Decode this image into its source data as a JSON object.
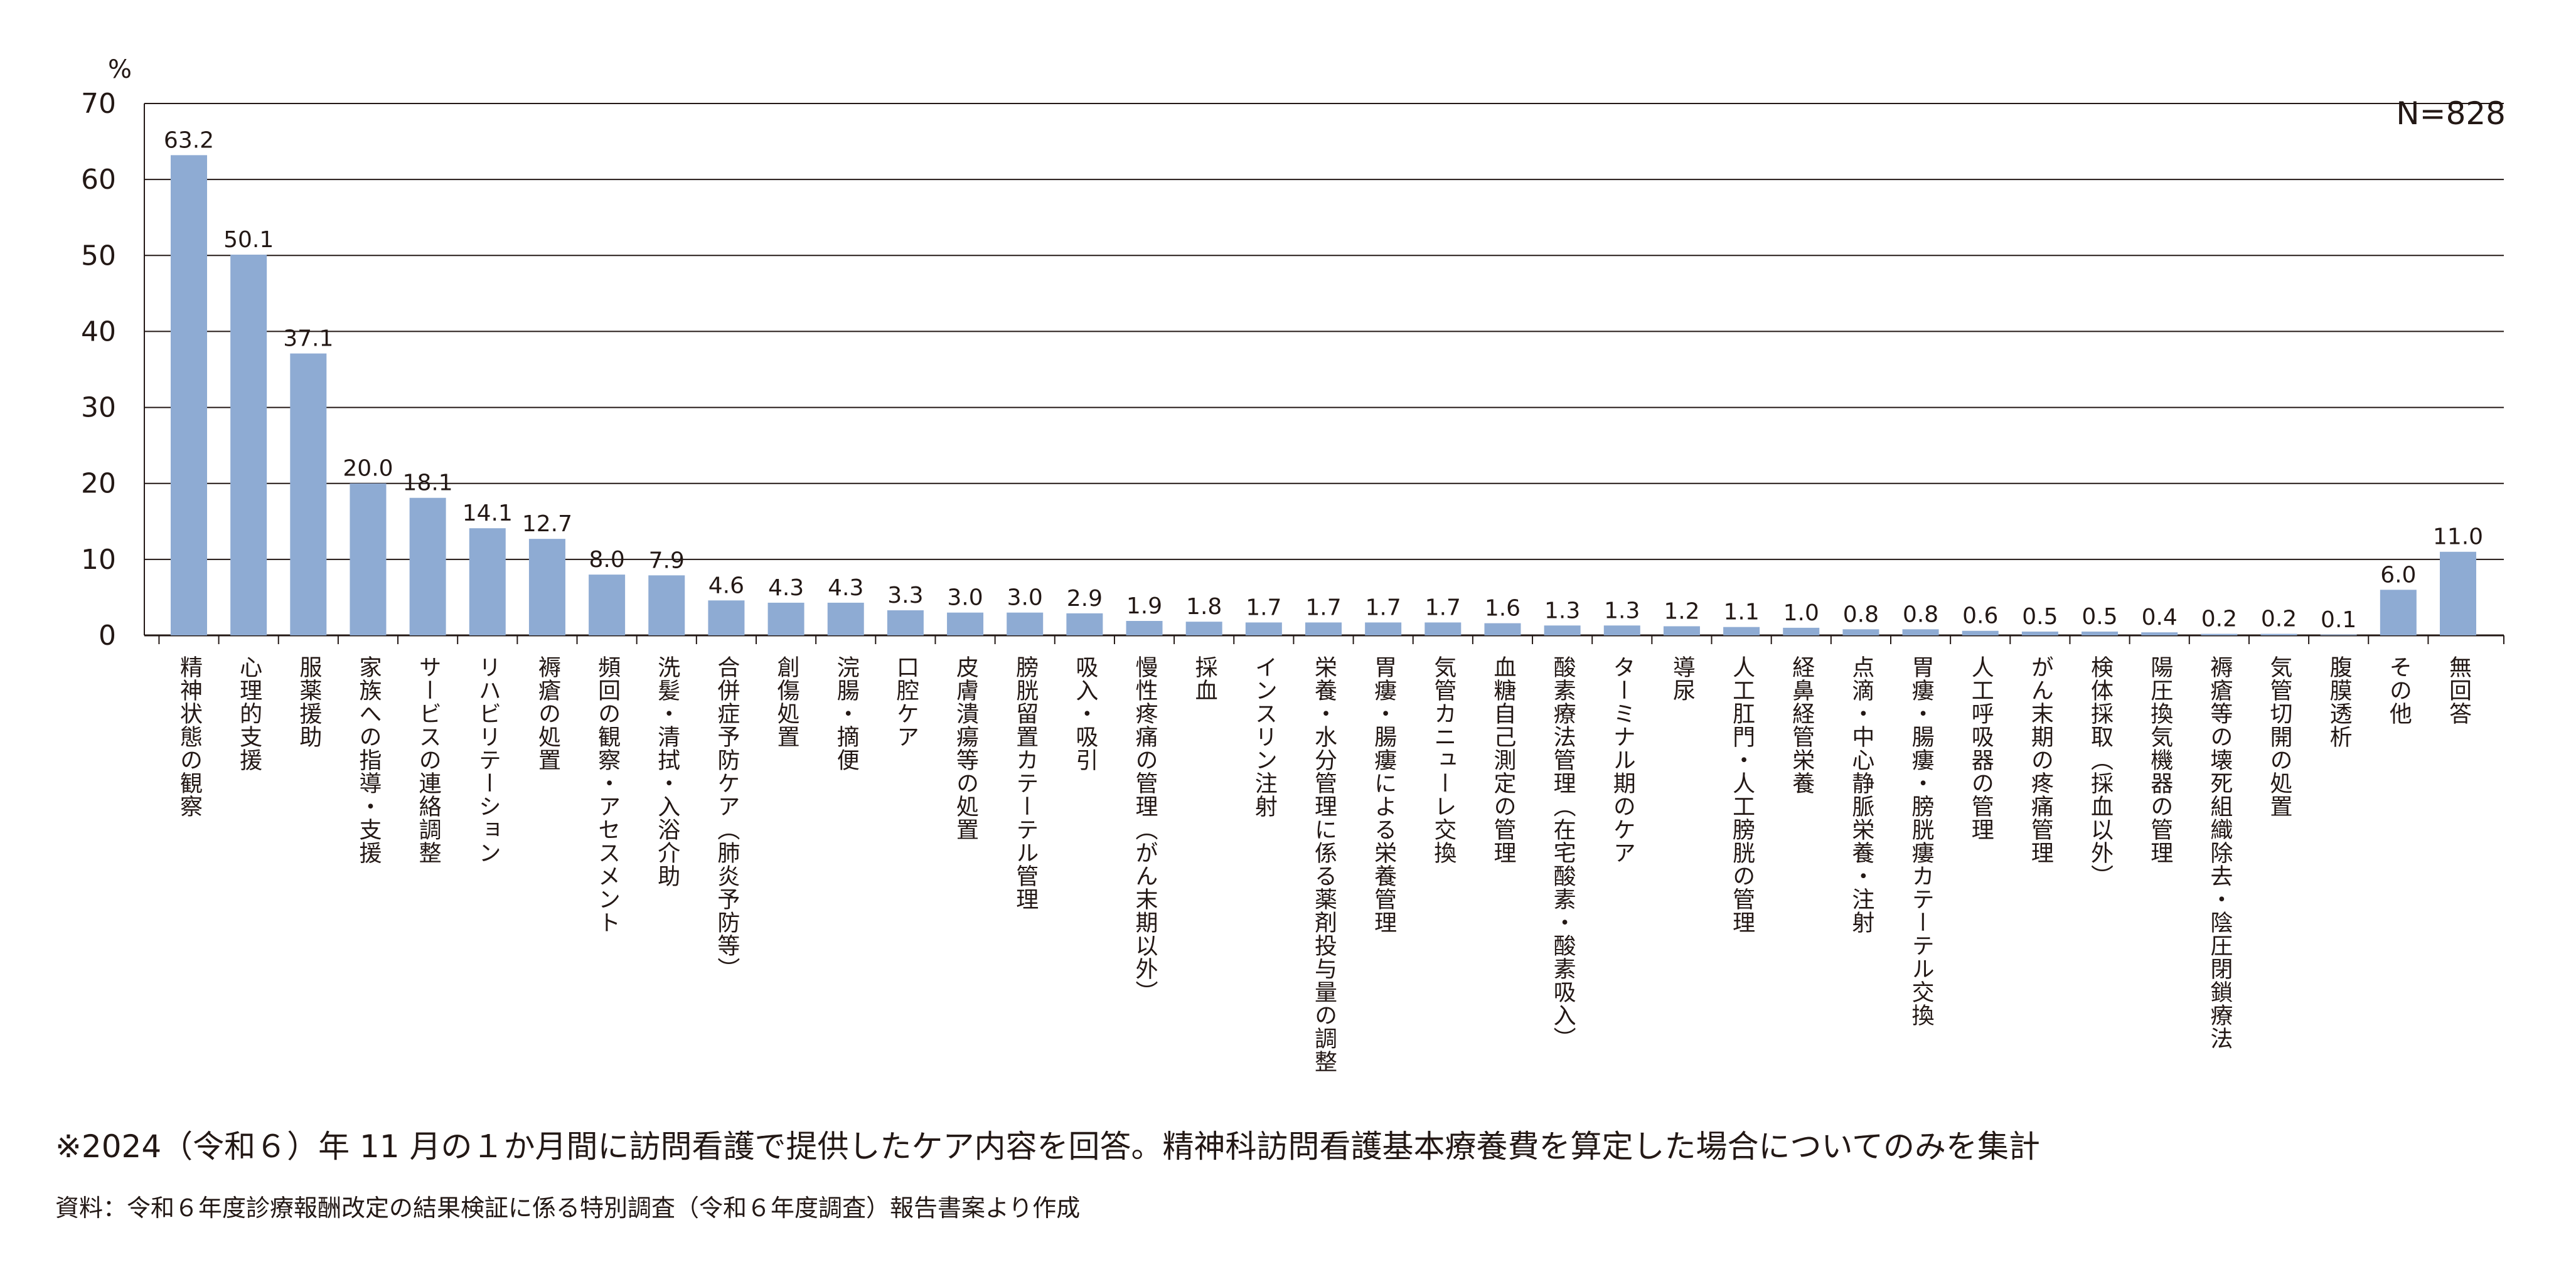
{
  "chart_data": {
    "type": "bar",
    "ylabel": "%",
    "ylim": [
      0,
      70
    ],
    "yticks": [
      0,
      10,
      20,
      30,
      40,
      50,
      60,
      70
    ],
    "grid": true,
    "annotation": "N=828",
    "bar_color": "#8eabd3",
    "categories": [
      "精神状態の観察",
      "心理的支援",
      "服薬援助",
      "家族への指導・支援",
      "サービスの連絡調整",
      "リハビリテーション",
      "褥瘡の処置",
      "頻回の観察・アセスメント",
      "洗髪・清拭・入浴介助",
      "合併症予防ケア（肺炎予防等）",
      "創傷処置",
      "浣腸・摘便",
      "口腔ケア",
      "皮膚潰瘍等の処置",
      "膀胱留置カテーテル管理",
      "吸入・吸引",
      "慢性疼痛の管理（がん末期以外）",
      "採血",
      "インスリン注射",
      "栄養・水分管理に係る薬剤投与量の調整",
      "胃瘻・腸瘻による栄養管理",
      "気管カニューレ交換",
      "血糖自己測定の管理",
      "酸素療法管理（在宅酸素・酸素吸入）",
      "ターミナル期のケア",
      "導尿",
      "人工肛門・人工膀胱の管理",
      "経鼻経管栄養",
      "点滴・中心静脈栄養・注射",
      "胃瘻・腸瘻・膀胱瘻カテーテル交換",
      "人工呼吸器の管理",
      "がん末期の疼痛管理",
      "検体採取（採血以外）",
      "陽圧換気機器の管理",
      "褥瘡等の壊死組織除去・陰圧閉鎖療法",
      "気管切開の処置",
      "腹膜透析",
      "その他",
      "無回答"
    ],
    "values": [
      63.2,
      50.1,
      37.1,
      20.0,
      18.1,
      14.1,
      12.7,
      8.0,
      7.9,
      4.6,
      4.3,
      4.3,
      3.3,
      3.0,
      3.0,
      2.9,
      1.9,
      1.8,
      1.7,
      1.7,
      1.7,
      1.7,
      1.6,
      1.3,
      1.3,
      1.2,
      1.1,
      1.0,
      0.8,
      0.8,
      0.6,
      0.5,
      0.5,
      0.4,
      0.2,
      0.2,
      0.1,
      6.0,
      11.0
    ],
    "value_labels": [
      "63.2",
      "50.1",
      "37.1",
      "20.0",
      "18.1",
      "14.1",
      "12.7",
      "8.0",
      "7.9",
      "4.6",
      "4.3",
      "4.3",
      "3.3",
      "3.0",
      "3.0",
      "2.9",
      "1.9",
      "1.8",
      "1.7",
      "1.7",
      "1.7",
      "1.7",
      "1.6",
      "1.3",
      "1.3",
      "1.2",
      "1.1",
      "1.0",
      "0.8",
      "0.8",
      "0.6",
      "0.5",
      "0.5",
      "0.4",
      "0.2",
      "0.2",
      "0.1",
      "6.0",
      "11.0"
    ]
  },
  "footnote": "※2024（令和６）年 11 月の１か月間に訪問看護で提供したケア内容を回答。精神科訪問看護基本療養費を算定した場合についてのみを集計",
  "source": "資料：令和６年度診療報酬改定の結果検証に係る特別調査（令和６年度調査）報告書案より作成"
}
